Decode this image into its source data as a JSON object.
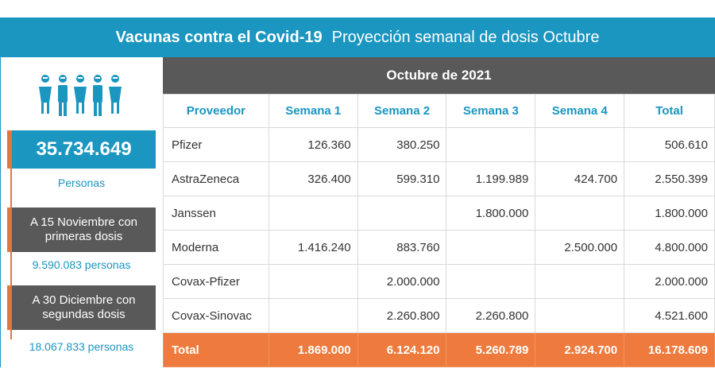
{
  "header": {
    "title_bold": "Vacunas contra el Covid-19",
    "title_rest": "Proyección semanal de dosis Octubre"
  },
  "left_panel": {
    "people_icon": "people-group-icon",
    "total_people": "35.734.649",
    "total_people_label": "Personas",
    "box1_label": "A 15 Noviembre con primeras dosis",
    "box1_value": "9.590.083 personas",
    "box2_label": "A 30 Diciembre con segundas dosis",
    "box2_value": "18.067.833 personas"
  },
  "table": {
    "month": "Octubre de 2021",
    "headers": [
      "Proveedor",
      "Semana 1",
      "Semana 2",
      "Semana 3",
      "Semana 4",
      "Total"
    ],
    "rows": [
      [
        "Pfizer",
        "126.360",
        "380.250",
        "",
        "",
        "506.610"
      ],
      [
        "AstraZeneca",
        "326.400",
        "599.310",
        "1.199.989",
        "424.700",
        "2.550.399"
      ],
      [
        "Janssen",
        "",
        "",
        "1.800.000",
        "",
        "1.800.000"
      ],
      [
        "Moderna",
        "1.416.240",
        "883.760",
        "",
        "2.500.000",
        "4.800.000"
      ],
      [
        "Covax-Pfizer",
        "",
        "2.000.000",
        "",
        "",
        "2.000.000"
      ],
      [
        "Covax-Sinovac",
        "",
        "2.260.800",
        "2.260.800",
        "",
        "4.521.600"
      ]
    ],
    "total_row": [
      "Total",
      "1.869.000",
      "6.124.120",
      "5.260.789",
      "2.924.700",
      "16.178.609"
    ]
  },
  "colors": {
    "blue": "#1a96c0",
    "gray": "#595959",
    "orange": "#ee7b3d"
  }
}
